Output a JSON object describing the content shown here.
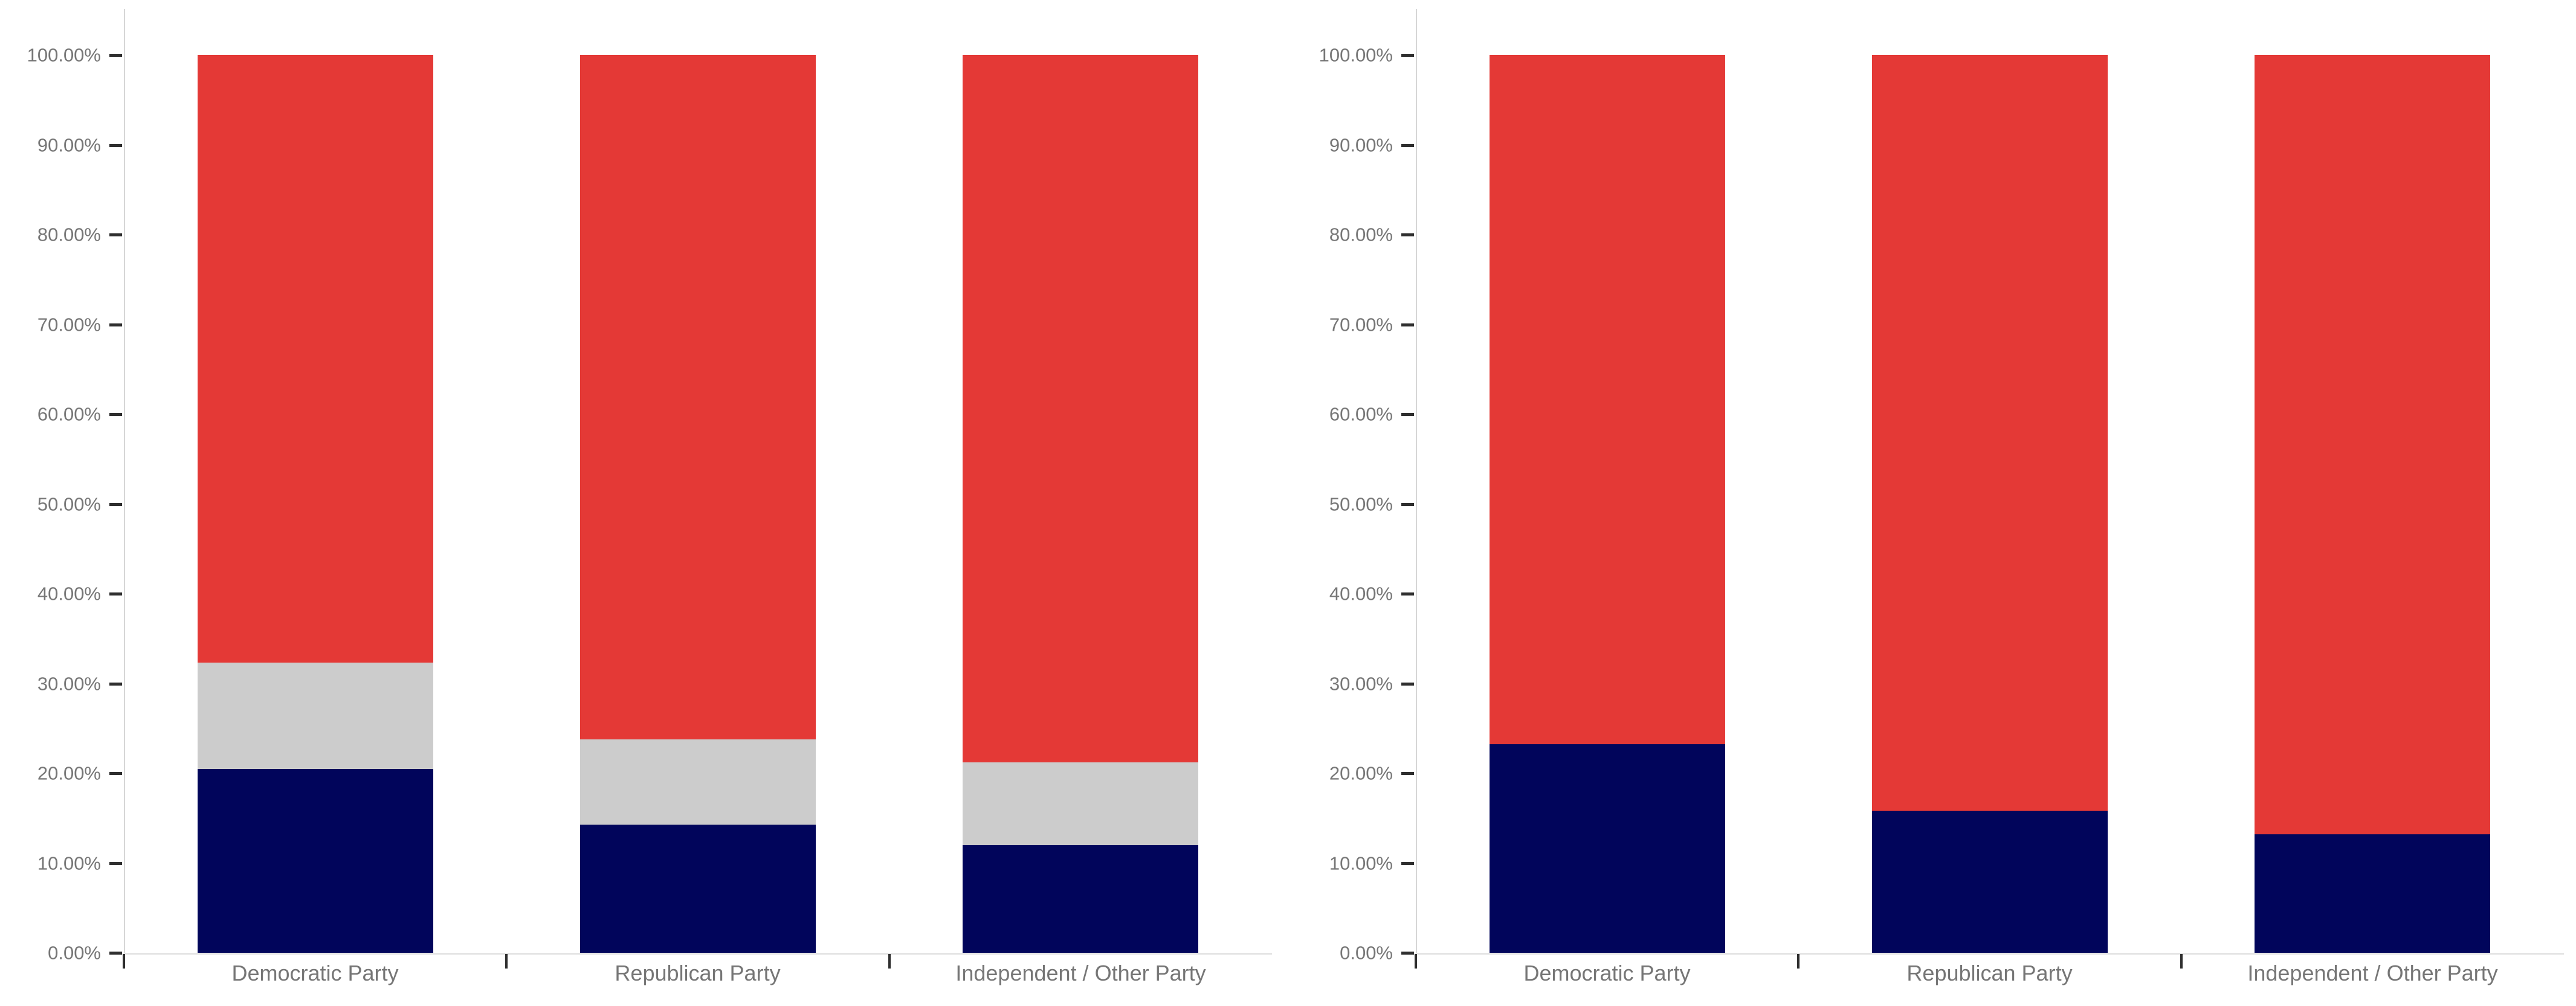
{
  "page": {
    "background": "#ffffff"
  },
  "axis_style": {
    "tick_label_color": "#767676",
    "category_label_color": "#767676",
    "tick_mark_color": "#2e2e2e",
    "axis_line_color": "#d6d6d6",
    "baseline_color": "#e4e4e4"
  },
  "chart_data": [
    {
      "type": "bar",
      "subtype": "stacked-column-100pct",
      "title": "",
      "xlabel": "",
      "ylabel": "",
      "grid": false,
      "legend": false,
      "ylim": [
        0,
        100
      ],
      "y_tick_labels": [
        "0.00%",
        "10.00%",
        "20.00%",
        "30.00%",
        "40.00%",
        "50.00%",
        "60.00%",
        "70.00%",
        "80.00%",
        "90.00%",
        "100.00%"
      ],
      "categories": [
        "Democratic Party",
        "Republican Party",
        "Independent / Other Party"
      ],
      "stack_order": "bottom-to-top",
      "series": [
        {
          "name": "navy",
          "color": "#01055b",
          "values": [
            20.5,
            14.3,
            12.0
          ]
        },
        {
          "name": "silver",
          "color": "#cccccc",
          "values": [
            11.8,
            9.5,
            9.2
          ]
        },
        {
          "name": "red",
          "color": "#e43936",
          "values": [
            67.7,
            76.2,
            78.8
          ]
        }
      ]
    },
    {
      "type": "bar",
      "subtype": "stacked-column-100pct",
      "title": "",
      "xlabel": "",
      "ylabel": "",
      "grid": false,
      "legend": false,
      "ylim": [
        0,
        100
      ],
      "y_tick_labels": [
        "0.00%",
        "10.00%",
        "20.00%",
        "30.00%",
        "40.00%",
        "50.00%",
        "60.00%",
        "70.00%",
        "80.00%",
        "90.00%",
        "100.00%"
      ],
      "categories": [
        "Democratic Party",
        "Republican Party",
        "Independent / Other Party"
      ],
      "stack_order": "bottom-to-top",
      "series": [
        {
          "name": "navy",
          "color": "#01055b",
          "values": [
            23.2,
            15.8,
            13.2
          ]
        },
        {
          "name": "red",
          "color": "#e43936",
          "values": [
            76.8,
            84.2,
            86.8
          ]
        }
      ]
    }
  ]
}
